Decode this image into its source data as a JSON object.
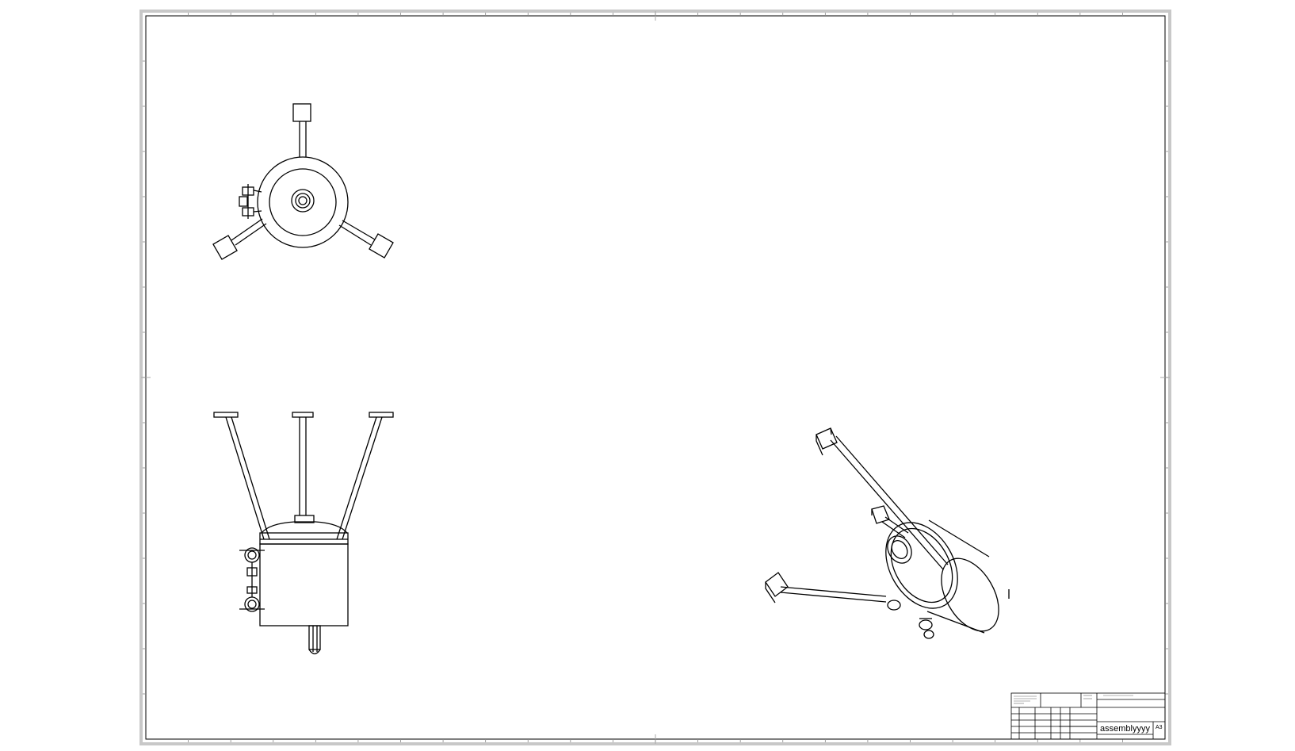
{
  "title_block": {
    "drawing_title": "assemblyyyy",
    "sheet_size": "A3"
  }
}
